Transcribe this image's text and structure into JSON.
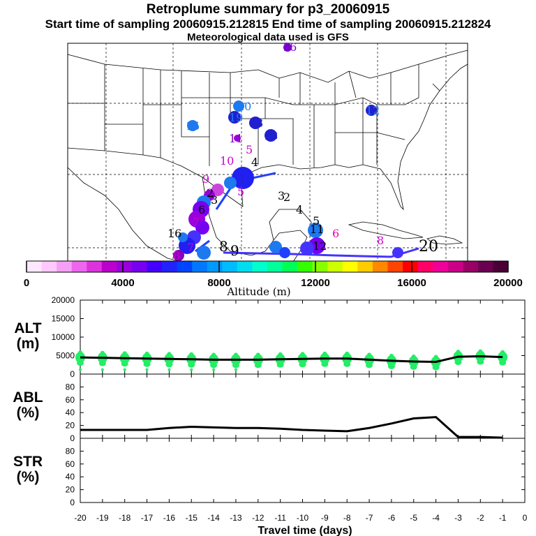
{
  "title": "Retroplume summary for p3_20060915",
  "start_end": "Start time of sampling 20060915.212815     End time of sampling 20060915.212824",
  "met_data": "Meteorological data used is GFS",
  "chart_data": [
    {
      "type": "map",
      "description_panel": "trajectory-map",
      "trajectory_labels": [
        {
          "text": "16",
          "color": "#7a00d0"
        },
        {
          "text": "20",
          "color": "#1e78f0"
        },
        {
          "text": "19",
          "color": "#1e78f0"
        },
        {
          "text": "13",
          "color": "#2020d0"
        },
        {
          "text": "18",
          "color": "#2020d0"
        },
        {
          "text": "12",
          "color": "#1e78f0"
        },
        {
          "text": "15",
          "color": "#1e78f0"
        },
        {
          "text": "11",
          "color": "#8800c0"
        },
        {
          "text": "5",
          "color": "#cc00cc"
        },
        {
          "text": "10",
          "color": "#cc00cc"
        },
        {
          "text": "4",
          "color": "#000000"
        },
        {
          "text": "9",
          "color": "#cc00cc"
        },
        {
          "text": "3",
          "color": "#000000"
        },
        {
          "text": "2",
          "color": "#000000"
        },
        {
          "text": "1",
          "color": "#2020d0"
        },
        {
          "text": "8",
          "color": "#cc00cc"
        },
        {
          "text": "6",
          "color": "#ee00aa"
        },
        {
          "text": "7",
          "color": "#cc00cc"
        }
      ]
    },
    {
      "type": "colorbar",
      "label": "Altitude (m)",
      "range": [
        0,
        20000
      ],
      "ticks": [
        0,
        4000,
        8000,
        12000,
        16000,
        20000
      ],
      "tick_labels": [
        "0",
        "4000",
        "8000",
        "12000",
        "16000",
        "20000"
      ],
      "colors": [
        "#ffe8ff",
        "#ffc8ff",
        "#f5a0f5",
        "#ee66ee",
        "#dd33dd",
        "#bb00cc",
        "#9900dd",
        "#7700ee",
        "#4400ff",
        "#2222ff",
        "#0044ff",
        "#0077ff",
        "#0099ff",
        "#00bbff",
        "#00ddee",
        "#00ffcc",
        "#00ff99",
        "#00ff55",
        "#33ff00",
        "#88ff00",
        "#ccff00",
        "#ffff00",
        "#ffcc00",
        "#ff8800",
        "#ff4400",
        "#ff0000",
        "#ff0066",
        "#ee0099",
        "#cc0088",
        "#990066",
        "#6a0050",
        "#4a0035"
      ]
    },
    {
      "type": "line",
      "panel": "ALT",
      "ylabel": "ALT\n(m)",
      "ylim": [
        0,
        20000
      ],
      "yticks": [
        0,
        5000,
        10000,
        15000,
        20000
      ],
      "x": [
        -20,
        -19,
        -18,
        -17,
        -16,
        -15,
        -14,
        -13,
        -12,
        -11,
        -10,
        -9,
        -8,
        -7,
        -6,
        -5,
        -4,
        -3,
        -2,
        -1
      ],
      "values": [
        4500,
        4400,
        4300,
        4200,
        4100,
        4000,
        3900,
        3900,
        3900,
        4000,
        4100,
        4200,
        4200,
        3900,
        3600,
        3400,
        3300,
        4700,
        4800,
        4600
      ],
      "scatter_color": "#22ee66"
    },
    {
      "type": "line",
      "panel": "ABL",
      "ylabel": "ABL\n(%)",
      "ylim": [
        0,
        100
      ],
      "yticks": [
        0,
        20,
        40,
        60,
        80
      ],
      "x": [
        -20,
        -19,
        -18,
        -17,
        -16,
        -15,
        -14,
        -13,
        -12,
        -11,
        -10,
        -9,
        -8,
        -7,
        -6,
        -5,
        -4,
        -3,
        -2,
        -1
      ],
      "values": [
        13,
        13,
        13,
        13,
        16,
        18,
        17,
        16,
        16,
        15,
        13,
        12,
        11,
        16,
        23,
        31,
        33,
        2,
        2,
        1
      ]
    },
    {
      "type": "line",
      "panel": "STR",
      "ylabel": "STR\n(%)",
      "ylim": [
        0,
        100
      ],
      "yticks": [
        0,
        20,
        40,
        60,
        80
      ],
      "x": [],
      "values": []
    }
  ],
  "x_axis": {
    "label": "Travel time (days)",
    "ticks": [
      -20,
      -19,
      -18,
      -17,
      -16,
      -15,
      -14,
      -13,
      -12,
      -11,
      -10,
      -9,
      -8,
      -7,
      -6,
      -5,
      -4,
      -3,
      -2,
      -1,
      0
    ],
    "tick_labels": [
      "-20",
      "-19",
      "-18",
      "-17",
      "-16",
      "-15",
      "-14",
      "-13",
      "-12",
      "-11",
      "-10",
      "-9",
      "-8",
      "-7",
      "-6",
      "-5",
      "-4",
      "-3",
      "-2",
      "-1",
      "0"
    ]
  }
}
